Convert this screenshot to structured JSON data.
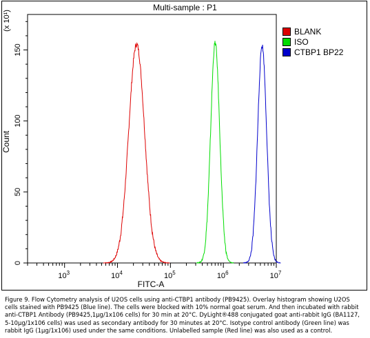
{
  "chart_data": {
    "type": "line",
    "title": "Multi-sample : P1",
    "xlabel": "FITC-A",
    "ylabel": "Count",
    "y_multiplier": "(x 10¹)",
    "x_scale": "log",
    "xlim": [
      200,
      10000000
    ],
    "ylim": [
      0,
      175
    ],
    "x_ticks": [
      {
        "base": "10",
        "exp": "3",
        "value": 1000
      },
      {
        "base": "10",
        "exp": "4",
        "value": 10000
      },
      {
        "base": "10",
        "exp": "5",
        "value": 100000
      },
      {
        "base": "10",
        "exp": "6",
        "value": 1000000
      },
      {
        "base": "10",
        "exp": "7",
        "value": 10000000
      }
    ],
    "y_ticks": [
      "0",
      "50",
      "100",
      "150"
    ],
    "y_tick_values": [
      0,
      50,
      100,
      150
    ],
    "legend_position": "top-right",
    "grid": false,
    "series": [
      {
        "name": "BLANK",
        "color": "#dd0000",
        "peak_x": 23000,
        "peak_y": 154,
        "width_log": 0.15
      },
      {
        "name": "ISO",
        "color": "#00dd00",
        "peak_x": 700000,
        "peak_y": 155,
        "width_log": 0.085
      },
      {
        "name": "CTBP1 BP22",
        "color": "#0000cc",
        "peak_x": 5400000,
        "peak_y": 153,
        "width_log": 0.085
      }
    ]
  },
  "caption": "Figure 9. Flow Cytometry analysis of U2OS cells using anti-CTBP1 antibody (PB9425).  Overlay histogram showing U2OS cells stained with PB9425 (Blue line). The cells were blocked with 10% normal goat serum.  And then incubated with rabbit anti-CTBP1 Antibody (PB9425,1µg/1x106 cells) for 30 min at 20°C. DyLight®488 conjugated goat anti-rabbit IgG (BA1127, 5-10µg/1x106 cells) was used as secondary antibody for 30 minutes at 20°C. Isotype control antibody (Green line) was rabbit IgG (1µg/1x106) used under the same conditions. Unlabelled sample (Red line) was also used as a control."
}
